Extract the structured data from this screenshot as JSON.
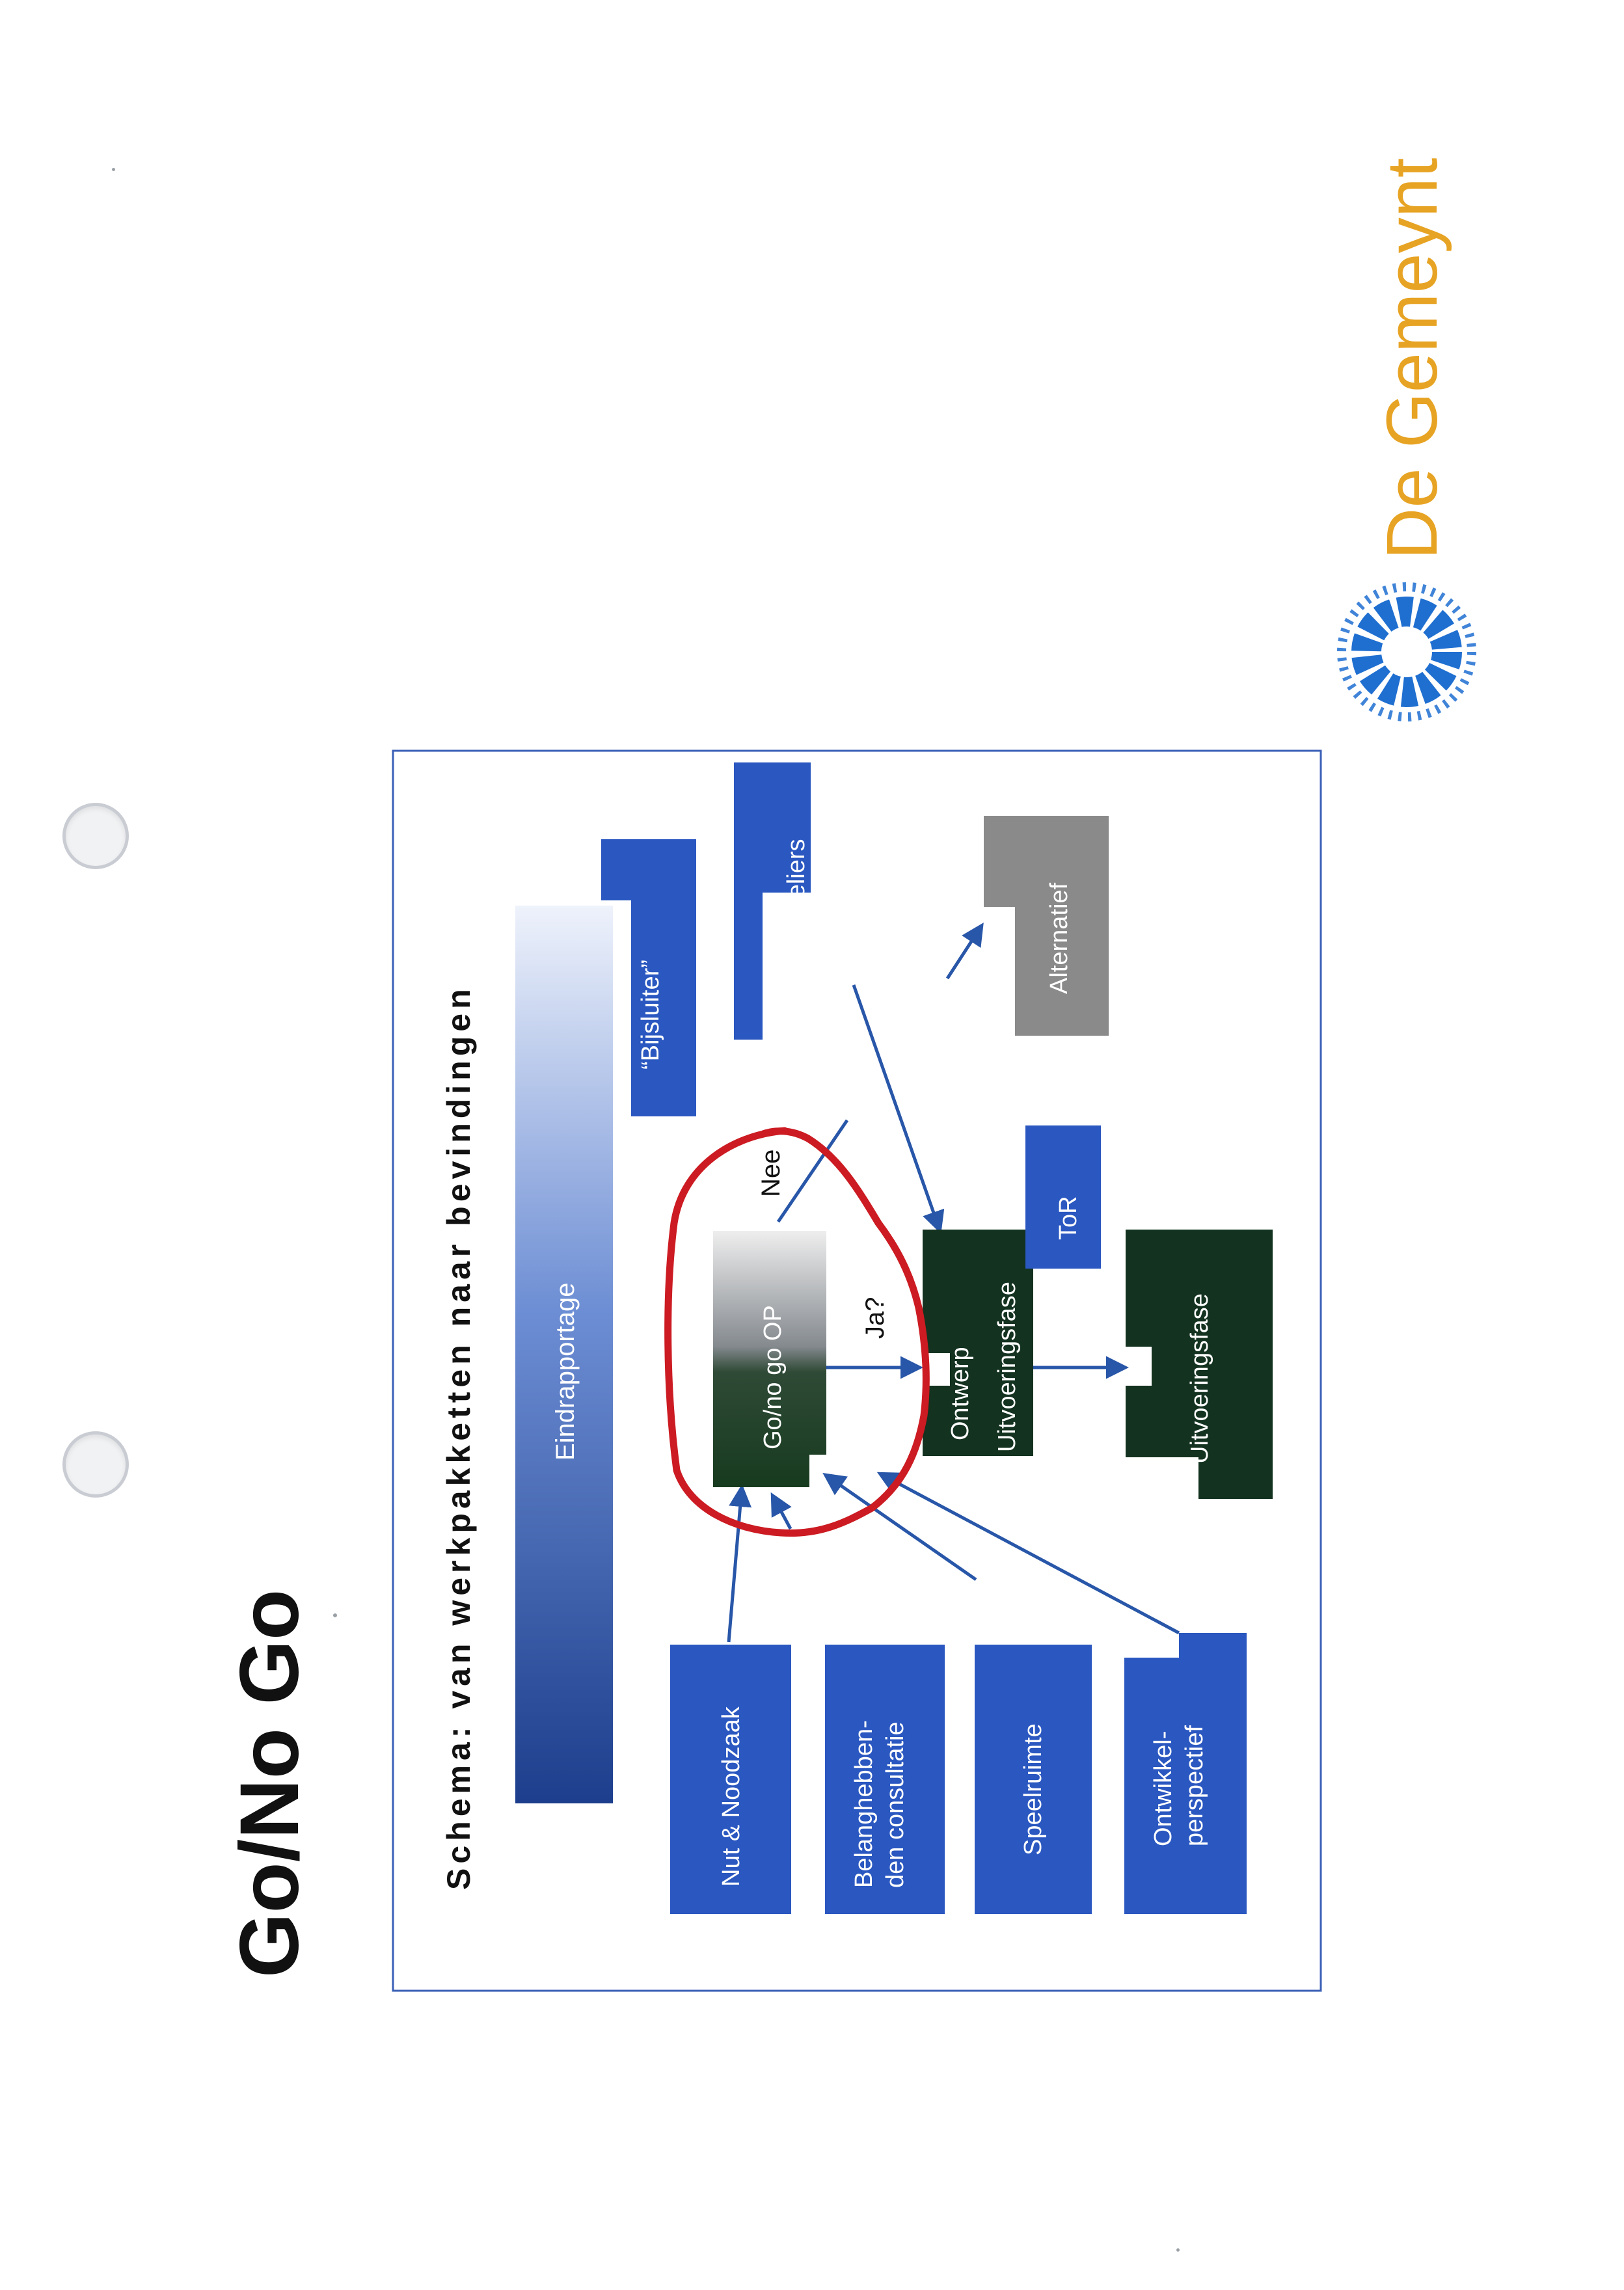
{
  "page": {
    "title": "Go/No Go"
  },
  "slide": {
    "title": "Schema: van werkpakketten naar bevindingen",
    "boxes": {
      "eindrapportage": "Eindrapportage",
      "bijsluiter": "“Bijsluiter”",
      "ateliers": "ateliers",
      "alternatief": "Alternatief",
      "gonogo": "Go/no go OP",
      "ontwerp_line1": "Ontwerp",
      "ontwerp_line2": "Uitvoeringsfase",
      "tor": "ToR",
      "uitvoeringsfase": "Uitvoeringsfase",
      "nut": "Nut & Noodzaak",
      "belang_line1": "Belanghebben-",
      "belang_line2": "den consultatie",
      "speelruimte": "Speelruimte",
      "ontwikkel_line1": "Ontwikkel-",
      "ontwikkel_line2": "perspectief"
    },
    "labels": {
      "nee": "Nee",
      "ja": "Ja?"
    }
  },
  "logo": {
    "text": "De Gemeynt"
  },
  "colors": {
    "blue_box": "#2a57c0",
    "dark_green": "#13321f",
    "gray_box": "#8a8a8a",
    "arrow": "#2856a8",
    "red_marker": "#cc1b22",
    "logo_text": "#e7a323",
    "logo_mark": "#1f6fd1",
    "frame": "#3a5fb6"
  }
}
